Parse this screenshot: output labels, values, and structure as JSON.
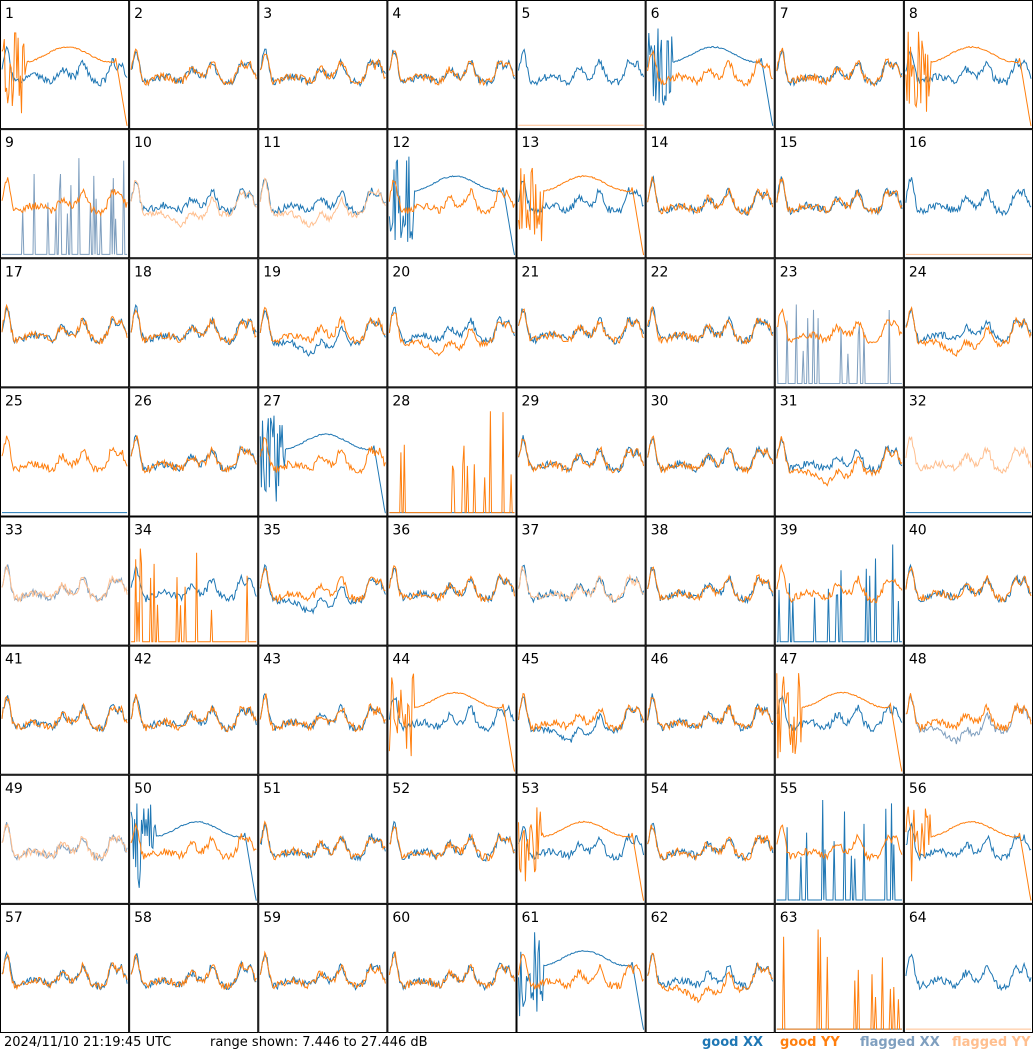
{
  "chart_data": {
    "type": "line",
    "layout": "8x8 small multiples",
    "timestamp": "2024/11/10 21:19:45 UTC",
    "range_label": "range shown: 7.446 to 27.446 dB",
    "ylim": [
      7.446,
      27.446
    ],
    "legend": [
      {
        "label": "good XX",
        "color": "#1f77b4"
      },
      {
        "label": "good YY",
        "color": "#ff7f0e"
      },
      {
        "label": "flagged XX",
        "color": "#7f9fbf"
      },
      {
        "label": "flagged YY",
        "color": "#ffbf8f"
      }
    ],
    "panels": [
      {
        "id": "1",
        "xx": "good",
        "yy": "good",
        "xx_shape": "normal",
        "yy_shape": "smooth"
      },
      {
        "id": "2",
        "xx": "good",
        "yy": "good",
        "xx_shape": "normal",
        "yy_shape": "normal"
      },
      {
        "id": "3",
        "xx": "good",
        "yy": "good",
        "xx_shape": "normal",
        "yy_shape": "normal"
      },
      {
        "id": "4",
        "xx": "good",
        "yy": "good",
        "xx_shape": "normal",
        "yy_shape": "normal"
      },
      {
        "id": "5",
        "xx": "good",
        "yy": "flagged",
        "xx_shape": "normal",
        "yy_shape": "flat"
      },
      {
        "id": "6",
        "xx": "good",
        "yy": "good",
        "xx_shape": "smooth",
        "yy_shape": "normal"
      },
      {
        "id": "7",
        "xx": "good",
        "yy": "good",
        "xx_shape": "normal",
        "yy_shape": "normal"
      },
      {
        "id": "8",
        "xx": "good",
        "yy": "good",
        "xx_shape": "normal",
        "yy_shape": "smooth"
      },
      {
        "id": "9",
        "xx": "flagged",
        "yy": "good",
        "xx_shape": "spiky",
        "yy_shape": "normal"
      },
      {
        "id": "10",
        "xx": "good",
        "yy": "flagged",
        "xx_shape": "normal",
        "yy_shape": "low"
      },
      {
        "id": "11",
        "xx": "good",
        "yy": "flagged",
        "xx_shape": "normal",
        "yy_shape": "low"
      },
      {
        "id": "12",
        "xx": "good",
        "yy": "good",
        "xx_shape": "smooth",
        "yy_shape": "normal"
      },
      {
        "id": "13",
        "xx": "good",
        "yy": "good",
        "xx_shape": "normal",
        "yy_shape": "smooth"
      },
      {
        "id": "14",
        "xx": "good",
        "yy": "good",
        "xx_shape": "normal",
        "yy_shape": "normal"
      },
      {
        "id": "15",
        "xx": "good",
        "yy": "good",
        "xx_shape": "normal",
        "yy_shape": "normal"
      },
      {
        "id": "16",
        "xx": "good",
        "yy": "flagged",
        "xx_shape": "normal",
        "yy_shape": "flat"
      },
      {
        "id": "17",
        "xx": "good",
        "yy": "good",
        "xx_shape": "normal",
        "yy_shape": "normal"
      },
      {
        "id": "18",
        "xx": "good",
        "yy": "good",
        "xx_shape": "normal",
        "yy_shape": "normal"
      },
      {
        "id": "19",
        "xx": "good",
        "yy": "good",
        "xx_shape": "low",
        "yy_shape": "normal"
      },
      {
        "id": "20",
        "xx": "good",
        "yy": "good",
        "xx_shape": "normal",
        "yy_shape": "low"
      },
      {
        "id": "21",
        "xx": "good",
        "yy": "good",
        "xx_shape": "normal",
        "yy_shape": "normal"
      },
      {
        "id": "22",
        "xx": "good",
        "yy": "good",
        "xx_shape": "normal",
        "yy_shape": "normal"
      },
      {
        "id": "23",
        "xx": "flagged",
        "yy": "good",
        "xx_shape": "spiky",
        "yy_shape": "normal"
      },
      {
        "id": "24",
        "xx": "good",
        "yy": "good",
        "xx_shape": "normal",
        "yy_shape": "low"
      },
      {
        "id": "25",
        "xx": "good",
        "yy": "good",
        "xx_shape": "flat",
        "yy_shape": "normal"
      },
      {
        "id": "26",
        "xx": "good",
        "yy": "good",
        "xx_shape": "normal",
        "yy_shape": "normal"
      },
      {
        "id": "27",
        "xx": "good",
        "yy": "good",
        "xx_shape": "smooth",
        "yy_shape": "normal"
      },
      {
        "id": "28",
        "xx": "good",
        "yy": "good",
        "xx_shape": "flat",
        "yy_shape": "spiky"
      },
      {
        "id": "29",
        "xx": "good",
        "yy": "good",
        "xx_shape": "normal",
        "yy_shape": "normal"
      },
      {
        "id": "30",
        "xx": "good",
        "yy": "good",
        "xx_shape": "normal",
        "yy_shape": "normal"
      },
      {
        "id": "31",
        "xx": "good",
        "yy": "good",
        "xx_shape": "normal",
        "yy_shape": "low"
      },
      {
        "id": "32",
        "xx": "good",
        "yy": "flagged",
        "xx_shape": "flat",
        "yy_shape": "normal"
      },
      {
        "id": "33",
        "xx": "flagged",
        "yy": "flagged",
        "xx_shape": "normal",
        "yy_shape": "normal"
      },
      {
        "id": "34",
        "xx": "good",
        "yy": "good",
        "xx_shape": "normal",
        "yy_shape": "spiky"
      },
      {
        "id": "35",
        "xx": "good",
        "yy": "good",
        "xx_shape": "low",
        "yy_shape": "normal"
      },
      {
        "id": "36",
        "xx": "good",
        "yy": "good",
        "xx_shape": "normal",
        "yy_shape": "normal"
      },
      {
        "id": "37",
        "xx": "good",
        "yy": "flagged",
        "xx_shape": "normal",
        "yy_shape": "normal"
      },
      {
        "id": "38",
        "xx": "good",
        "yy": "good",
        "xx_shape": "normal",
        "yy_shape": "normal"
      },
      {
        "id": "39",
        "xx": "good",
        "yy": "good",
        "xx_shape": "spiky",
        "yy_shape": "normal"
      },
      {
        "id": "40",
        "xx": "good",
        "yy": "good",
        "xx_shape": "normal",
        "yy_shape": "normal"
      },
      {
        "id": "41",
        "xx": "good",
        "yy": "good",
        "xx_shape": "normal",
        "yy_shape": "normal"
      },
      {
        "id": "42",
        "xx": "good",
        "yy": "good",
        "xx_shape": "normal",
        "yy_shape": "normal"
      },
      {
        "id": "43",
        "xx": "good",
        "yy": "good",
        "xx_shape": "normal",
        "yy_shape": "normal"
      },
      {
        "id": "44",
        "xx": "good",
        "yy": "good",
        "xx_shape": "normal",
        "yy_shape": "smooth"
      },
      {
        "id": "45",
        "xx": "good",
        "yy": "good",
        "xx_shape": "low",
        "yy_shape": "normal"
      },
      {
        "id": "46",
        "xx": "good",
        "yy": "good",
        "xx_shape": "normal",
        "yy_shape": "normal"
      },
      {
        "id": "47",
        "xx": "good",
        "yy": "good",
        "xx_shape": "normal",
        "yy_shape": "smooth"
      },
      {
        "id": "48",
        "xx": "flagged",
        "yy": "good",
        "xx_shape": "low",
        "yy_shape": "normal"
      },
      {
        "id": "49",
        "xx": "flagged",
        "yy": "flagged",
        "xx_shape": "normal",
        "yy_shape": "normal"
      },
      {
        "id": "50",
        "xx": "good",
        "yy": "good",
        "xx_shape": "smooth",
        "yy_shape": "normal"
      },
      {
        "id": "51",
        "xx": "good",
        "yy": "good",
        "xx_shape": "normal",
        "yy_shape": "normal"
      },
      {
        "id": "52",
        "xx": "good",
        "yy": "good",
        "xx_shape": "normal",
        "yy_shape": "normal"
      },
      {
        "id": "53",
        "xx": "good",
        "yy": "good",
        "xx_shape": "normal",
        "yy_shape": "smooth"
      },
      {
        "id": "54",
        "xx": "good",
        "yy": "good",
        "xx_shape": "normal",
        "yy_shape": "normal"
      },
      {
        "id": "55",
        "xx": "good",
        "yy": "good",
        "xx_shape": "spiky",
        "yy_shape": "normal"
      },
      {
        "id": "56",
        "xx": "good",
        "yy": "good",
        "xx_shape": "normal",
        "yy_shape": "smooth"
      },
      {
        "id": "57",
        "xx": "good",
        "yy": "good",
        "xx_shape": "normal",
        "yy_shape": "normal"
      },
      {
        "id": "58",
        "xx": "good",
        "yy": "good",
        "xx_shape": "normal",
        "yy_shape": "normal"
      },
      {
        "id": "59",
        "xx": "good",
        "yy": "good",
        "xx_shape": "normal",
        "yy_shape": "normal"
      },
      {
        "id": "60",
        "xx": "good",
        "yy": "good",
        "xx_shape": "normal",
        "yy_shape": "normal"
      },
      {
        "id": "61",
        "xx": "good",
        "yy": "good",
        "xx_shape": "smooth",
        "yy_shape": "normal"
      },
      {
        "id": "62",
        "xx": "good",
        "yy": "good",
        "xx_shape": "normal",
        "yy_shape": "low"
      },
      {
        "id": "63",
        "xx": "good",
        "yy": "good",
        "xx_shape": "flat",
        "yy_shape": "spiky"
      },
      {
        "id": "64",
        "xx": "good",
        "yy": "flagged",
        "xx_shape": "normal",
        "yy_shape": "flat"
      }
    ]
  }
}
